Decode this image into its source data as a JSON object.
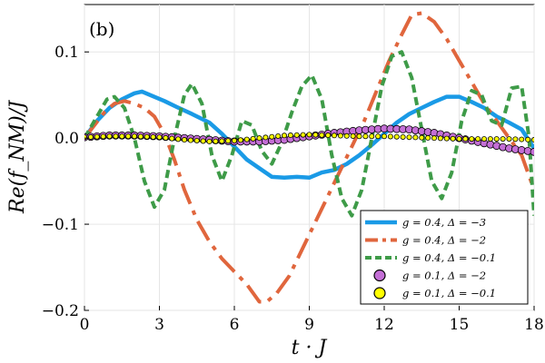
{
  "chart_data": {
    "type": "line",
    "panel_label": "(b)",
    "xlabel": "t · J",
    "ylabel": "Re(f_NM)/J",
    "xlim": [
      0,
      18
    ],
    "ylim": [
      -0.2,
      0.155
    ],
    "xticks": [
      0,
      3,
      6,
      9,
      12,
      15,
      18
    ],
    "yticks": [
      -0.2,
      -0.1,
      0.0,
      0.1
    ],
    "ytick_labels": [
      "−0.2",
      "−0.1",
      "0.0",
      "0.1"
    ],
    "legend_position": "bottom-right",
    "series": [
      {
        "name": "g = 0.4, Δ = −3",
        "style": "solid",
        "color": "#1a9ae6",
        "x": [
          0,
          0.5,
          1,
          1.5,
          2,
          2.3,
          2.7,
          3.2,
          3.7,
          4.3,
          5,
          5.5,
          6,
          6.5,
          7,
          7.5,
          8,
          8.5,
          9,
          9.5,
          10,
          10.5,
          11,
          11.5,
          12,
          12.5,
          13,
          13.5,
          14,
          14.5,
          15,
          15.5,
          16,
          16.5,
          17,
          17.5,
          18
        ],
        "y": [
          0,
          0.02,
          0.035,
          0.045,
          0.052,
          0.054,
          0.049,
          0.043,
          0.036,
          0.028,
          0.018,
          0.005,
          -0.01,
          -0.025,
          -0.035,
          -0.045,
          -0.046,
          -0.045,
          -0.046,
          -0.04,
          -0.037,
          -0.03,
          -0.02,
          -0.008,
          0.005,
          0.018,
          0.028,
          0.035,
          0.042,
          0.048,
          0.048,
          0.042,
          0.035,
          0.025,
          0.018,
          0.01,
          -0.012
        ]
      },
      {
        "name": "g = 0.4, Δ = −2",
        "style": "dashdot",
        "color": "#e0663d",
        "x": [
          0,
          0.4,
          0.8,
          1.2,
          1.6,
          2,
          2.4,
          2.8,
          3.2,
          3.6,
          4,
          4.5,
          5,
          5.5,
          6,
          6.5,
          7,
          7.3,
          7.7,
          8.2,
          8.7,
          9.2,
          9.7,
          10.2,
          10.7,
          11.2,
          11.7,
          12.2,
          12.7,
          13.1,
          13.5,
          14,
          14.5,
          15,
          15.5,
          16,
          16.5,
          17,
          17.5,
          18
        ],
        "y": [
          0,
          0.015,
          0.03,
          0.04,
          0.043,
          0.04,
          0.035,
          0.025,
          0.005,
          -0.025,
          -0.06,
          -0.095,
          -0.12,
          -0.14,
          -0.155,
          -0.17,
          -0.19,
          -0.19,
          -0.18,
          -0.16,
          -0.13,
          -0.1,
          -0.07,
          -0.04,
          -0.01,
          0.02,
          0.055,
          0.09,
          0.12,
          0.143,
          0.145,
          0.135,
          0.115,
          0.09,
          0.065,
          0.04,
          0.02,
          0.0,
          -0.02,
          -0.06
        ]
      },
      {
        "name": "g = 0.4, Δ = −0.1",
        "style": "dashed",
        "color": "#3e9b48",
        "x": [
          0,
          0.3,
          0.6,
          0.9,
          1.2,
          1.6,
          2,
          2.4,
          2.8,
          3.2,
          3.6,
          4,
          4.3,
          4.7,
          5.1,
          5.5,
          5.9,
          6.3,
          6.7,
          7.1,
          7.5,
          7.9,
          8.3,
          8.7,
          9.1,
          9.5,
          9.9,
          10.3,
          10.7,
          11.1,
          11.5,
          11.9,
          12.3,
          12.7,
          13.1,
          13.5,
          13.9,
          14.3,
          14.7,
          15.1,
          15.5,
          15.9,
          16.3,
          16.7,
          17.1,
          17.5,
          17.8,
          18
        ],
        "y": [
          0,
          0.015,
          0.03,
          0.045,
          0.048,
          0.035,
          0.0,
          -0.05,
          -0.08,
          -0.06,
          0.0,
          0.05,
          0.063,
          0.04,
          -0.02,
          -0.05,
          -0.02,
          0.02,
          0.015,
          -0.015,
          -0.03,
          -0.005,
          0.03,
          0.06,
          0.073,
          0.045,
          -0.02,
          -0.07,
          -0.09,
          -0.06,
          0.0,
          0.06,
          0.095,
          0.1,
          0.07,
          0.01,
          -0.05,
          -0.07,
          -0.04,
          0.02,
          0.055,
          0.05,
          0.02,
          0.015,
          0.058,
          0.06,
          0.0,
          -0.09
        ]
      },
      {
        "name": "g = 0.1, Δ = −2",
        "style": "markers",
        "color": "#c46fd6",
        "x": [
          0,
          1,
          2,
          3,
          4,
          5,
          6,
          7,
          8,
          9,
          10,
          11,
          12,
          13,
          14,
          15,
          16,
          17,
          18
        ],
        "y": [
          0.001,
          0.003,
          0.003,
          0.002,
          0.0,
          -0.002,
          -0.004,
          -0.004,
          -0.002,
          0.002,
          0.006,
          0.009,
          0.011,
          0.01,
          0.006,
          0.0,
          -0.006,
          -0.012,
          -0.016
        ]
      },
      {
        "name": "g = 0.1, Δ = −0.1",
        "style": "markers",
        "color": "#ffff00",
        "x": [
          0,
          1,
          2,
          3,
          4,
          5,
          6,
          7,
          8,
          9,
          10,
          11,
          12,
          13,
          14,
          15,
          16,
          17,
          18
        ],
        "y": [
          0.001,
          0.002,
          0.002,
          0.001,
          -0.002,
          -0.004,
          -0.003,
          0.0,
          0.003,
          0.004,
          0.003,
          0.002,
          0.002,
          0.001,
          0.0,
          -0.001,
          -0.001,
          -0.001,
          -0.002
        ]
      }
    ]
  }
}
